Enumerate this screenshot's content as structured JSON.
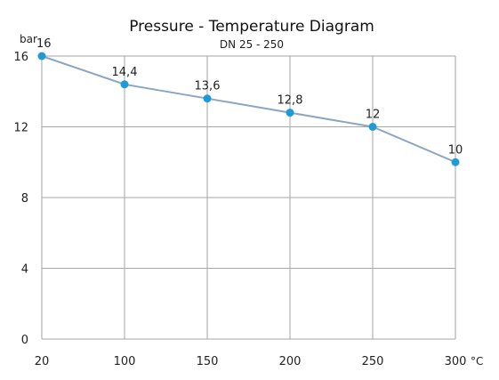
{
  "chart_data": {
    "type": "line",
    "title": "Pressure - Temperature Diagram",
    "subtitle": "DN 25 - 250",
    "xlabel": "°C",
    "ylabel": "bar",
    "x": [
      20,
      100,
      150,
      200,
      250,
      300
    ],
    "x_tick_labels": [
      "20",
      "100",
      "150",
      "200",
      "250",
      "300"
    ],
    "y_ticks": [
      0,
      4,
      8,
      12,
      16
    ],
    "y_tick_labels": [
      "0",
      "4",
      "8",
      "12",
      "16"
    ],
    "ylim": [
      0,
      16
    ],
    "series": [
      {
        "values": [
          16,
          14.4,
          13.6,
          12.8,
          12,
          10
        ],
        "data_labels": [
          "16",
          "14,4",
          "13,6",
          "12,8",
          "12",
          "10"
        ],
        "color": "#1f9ad6"
      }
    ],
    "grid": true,
    "line_color": "#8aa6c4"
  }
}
